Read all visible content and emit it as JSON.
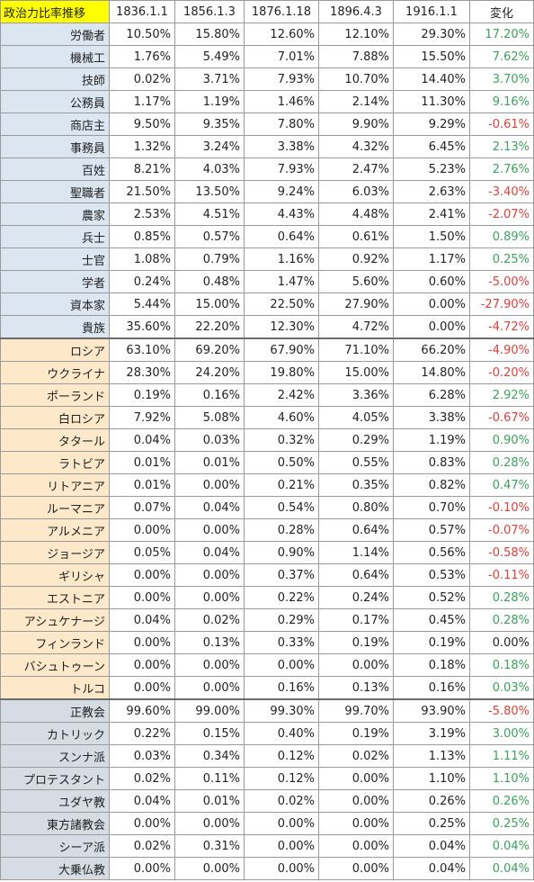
{
  "table": {
    "title": "政治力比率推移",
    "columns": [
      "1836.1.1",
      "1856.1.3",
      "1876.1.18",
      "1896.4.3",
      "1916.1.1"
    ],
    "change_header": "変化",
    "colors": {
      "title_bg": "#ffff00",
      "occupation_bg": "#dce6f1",
      "ethnicity_bg": "#fde9c9",
      "religion_bg": "#d6dce4",
      "positive": "#3aa35a",
      "negative": "#e0403b"
    },
    "groups": [
      {
        "key": "occupation",
        "rows": [
          {
            "label": "労働者",
            "values": [
              "10.50%",
              "15.80%",
              "12.60%",
              "12.10%",
              "29.30%"
            ],
            "change": "17.20%"
          },
          {
            "label": "機械工",
            "values": [
              "1.76%",
              "5.49%",
              "7.01%",
              "7.88%",
              "15.50%"
            ],
            "change": "7.62%"
          },
          {
            "label": "技師",
            "values": [
              "0.02%",
              "3.71%",
              "7.93%",
              "10.70%",
              "14.40%"
            ],
            "change": "3.70%"
          },
          {
            "label": "公務員",
            "values": [
              "1.17%",
              "1.19%",
              "1.46%",
              "2.14%",
              "11.30%"
            ],
            "change": "9.16%"
          },
          {
            "label": "商店主",
            "values": [
              "9.50%",
              "9.35%",
              "7.80%",
              "9.90%",
              "9.29%"
            ],
            "change": "-0.61%"
          },
          {
            "label": "事務員",
            "values": [
              "1.32%",
              "3.24%",
              "3.38%",
              "4.32%",
              "6.45%"
            ],
            "change": "2.13%"
          },
          {
            "label": "百姓",
            "values": [
              "8.21%",
              "4.03%",
              "7.93%",
              "2.47%",
              "5.23%"
            ],
            "change": "2.76%"
          },
          {
            "label": "聖職者",
            "values": [
              "21.50%",
              "13.50%",
              "9.24%",
              "6.03%",
              "2.63%"
            ],
            "change": "-3.40%"
          },
          {
            "label": "農家",
            "values": [
              "2.53%",
              "4.51%",
              "4.43%",
              "4.48%",
              "2.41%"
            ],
            "change": "-2.07%"
          },
          {
            "label": "兵士",
            "values": [
              "0.85%",
              "0.57%",
              "0.64%",
              "0.61%",
              "1.50%"
            ],
            "change": "0.89%"
          },
          {
            "label": "士官",
            "values": [
              "1.08%",
              "0.79%",
              "1.16%",
              "0.92%",
              "1.17%"
            ],
            "change": "0.25%"
          },
          {
            "label": "学者",
            "values": [
              "0.24%",
              "0.48%",
              "1.47%",
              "5.60%",
              "0.60%"
            ],
            "change": "-5.00%"
          },
          {
            "label": "資本家",
            "values": [
              "5.44%",
              "15.00%",
              "22.50%",
              "27.90%",
              "0.00%"
            ],
            "change": "-27.90%"
          },
          {
            "label": "貴族",
            "values": [
              "35.60%",
              "22.20%",
              "12.30%",
              "4.72%",
              "0.00%"
            ],
            "change": "-4.72%"
          }
        ]
      },
      {
        "key": "ethnicity",
        "rows": [
          {
            "label": "ロシア",
            "values": [
              "63.10%",
              "69.20%",
              "67.90%",
              "71.10%",
              "66.20%"
            ],
            "change": "-4.90%"
          },
          {
            "label": "ウクライナ",
            "values": [
              "28.30%",
              "24.20%",
              "19.80%",
              "15.00%",
              "14.80%"
            ],
            "change": "-0.20%"
          },
          {
            "label": "ポーランド",
            "values": [
              "0.19%",
              "0.16%",
              "2.42%",
              "3.36%",
              "6.28%"
            ],
            "change": "2.92%"
          },
          {
            "label": "白ロシア",
            "values": [
              "7.92%",
              "5.08%",
              "4.60%",
              "4.05%",
              "3.38%"
            ],
            "change": "-0.67%"
          },
          {
            "label": "タタール",
            "values": [
              "0.04%",
              "0.03%",
              "0.32%",
              "0.29%",
              "1.19%"
            ],
            "change": "0.90%"
          },
          {
            "label": "ラトビア",
            "values": [
              "0.01%",
              "0.01%",
              "0.50%",
              "0.55%",
              "0.83%"
            ],
            "change": "0.28%"
          },
          {
            "label": "リトアニア",
            "values": [
              "0.01%",
              "0.00%",
              "0.21%",
              "0.35%",
              "0.82%"
            ],
            "change": "0.47%"
          },
          {
            "label": "ルーマニア",
            "values": [
              "0.07%",
              "0.04%",
              "0.54%",
              "0.80%",
              "0.70%"
            ],
            "change": "-0.10%"
          },
          {
            "label": "アルメニア",
            "values": [
              "0.00%",
              "0.00%",
              "0.28%",
              "0.64%",
              "0.57%"
            ],
            "change": "-0.07%"
          },
          {
            "label": "ジョージア",
            "values": [
              "0.05%",
              "0.04%",
              "0.90%",
              "1.14%",
              "0.56%"
            ],
            "change": "-0.58%"
          },
          {
            "label": "ギリシャ",
            "values": [
              "0.00%",
              "0.00%",
              "0.37%",
              "0.64%",
              "0.53%"
            ],
            "change": "-0.11%"
          },
          {
            "label": "エストニア",
            "values": [
              "0.00%",
              "0.00%",
              "0.22%",
              "0.24%",
              "0.52%"
            ],
            "change": "0.28%"
          },
          {
            "label": "アシュケナージ",
            "values": [
              "0.04%",
              "0.02%",
              "0.29%",
              "0.17%",
              "0.45%"
            ],
            "change": "0.28%"
          },
          {
            "label": "フィンランド",
            "values": [
              "0.00%",
              "0.13%",
              "0.33%",
              "0.19%",
              "0.19%"
            ],
            "change": "0.00%"
          },
          {
            "label": "バシュトゥーン",
            "values": [
              "0.00%",
              "0.00%",
              "0.00%",
              "0.00%",
              "0.18%"
            ],
            "change": "0.18%"
          },
          {
            "label": "トルコ",
            "values": [
              "0.00%",
              "0.00%",
              "0.16%",
              "0.13%",
              "0.16%"
            ],
            "change": "0.03%"
          }
        ]
      },
      {
        "key": "religion",
        "rows": [
          {
            "label": "正教会",
            "values": [
              "99.60%",
              "99.00%",
              "99.30%",
              "99.70%",
              "93.90%"
            ],
            "change": "-5.80%"
          },
          {
            "label": "カトリック",
            "values": [
              "0.22%",
              "0.15%",
              "0.40%",
              "0.19%",
              "3.19%"
            ],
            "change": "3.00%"
          },
          {
            "label": "スンナ派",
            "values": [
              "0.03%",
              "0.34%",
              "0.12%",
              "0.02%",
              "1.13%"
            ],
            "change": "1.11%"
          },
          {
            "label": "プロテスタント",
            "values": [
              "0.02%",
              "0.11%",
              "0.12%",
              "0.00%",
              "1.10%"
            ],
            "change": "1.10%"
          },
          {
            "label": "ユダヤ教",
            "values": [
              "0.04%",
              "0.01%",
              "0.02%",
              "0.00%",
              "0.26%"
            ],
            "change": "0.26%"
          },
          {
            "label": "東方諸教会",
            "values": [
              "0.00%",
              "0.00%",
              "0.00%",
              "0.00%",
              "0.25%"
            ],
            "change": "0.25%"
          },
          {
            "label": "シーア派",
            "values": [
              "0.02%",
              "0.31%",
              "0.00%",
              "0.00%",
              "0.04%"
            ],
            "change": "0.04%"
          },
          {
            "label": "大乗仏教",
            "values": [
              "0.00%",
              "0.00%",
              "0.00%",
              "0.00%",
              "0.04%"
            ],
            "change": "0.04%"
          }
        ]
      }
    ]
  }
}
